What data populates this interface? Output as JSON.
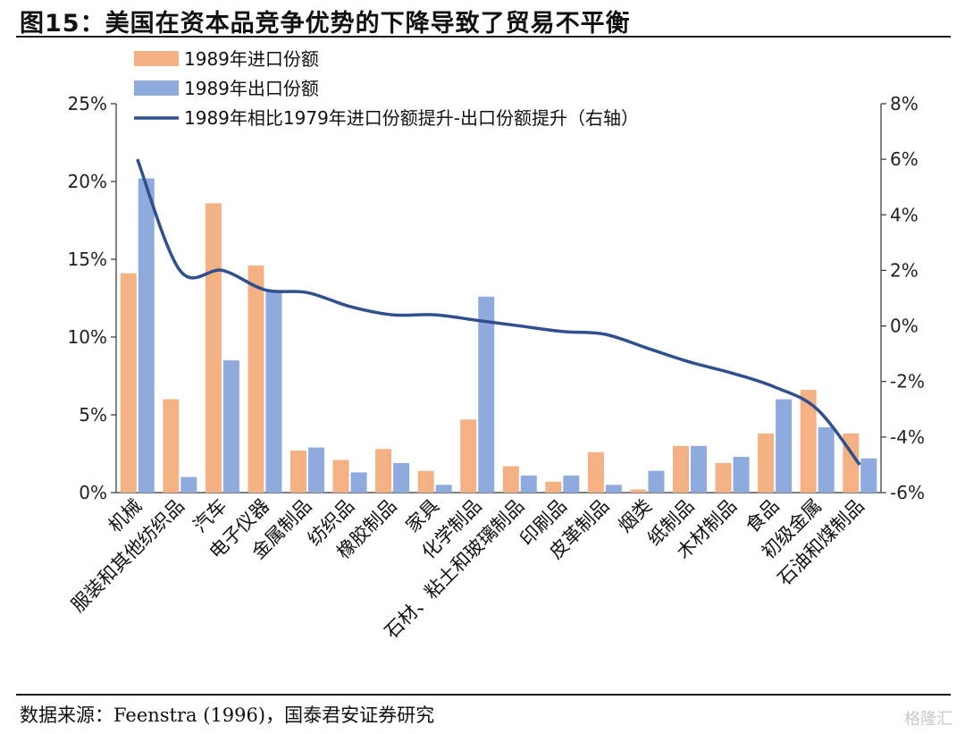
{
  "figure": {
    "title": "图15：美国在资本品竞争优势的下降导致了贸易不平衡",
    "source": "数据来源：Feenstra (1996)，国泰君安证券研究",
    "watermark": "格隆汇"
  },
  "chart_data": {
    "type": "bar",
    "categories": [
      "机械",
      "服装和其他纺织品",
      "汽车",
      "电子仪器",
      "金属制品",
      "纺织品",
      "橡胶制品",
      "家具",
      "化学制品",
      "石材、粘土和玻璃制品",
      "印刷品",
      "皮革制品",
      "烟类",
      "纸制品",
      "木材制品",
      "食品",
      "初级金属",
      "石油和煤制品"
    ],
    "series": [
      {
        "name": "1989年进口份额",
        "type": "bar",
        "axis": "left",
        "color": "#F4B183",
        "values": [
          14.1,
          6.0,
          18.6,
          14.6,
          2.7,
          2.1,
          2.8,
          1.4,
          4.7,
          1.7,
          0.7,
          2.6,
          0.2,
          3.0,
          1.9,
          3.8,
          6.6,
          3.8
        ]
      },
      {
        "name": "1989年出口份额",
        "type": "bar",
        "axis": "left",
        "color": "#8FAADC",
        "values": [
          20.2,
          1.0,
          8.5,
          13.0,
          2.9,
          1.3,
          1.9,
          0.5,
          12.6,
          1.1,
          1.1,
          0.5,
          1.4,
          3.0,
          2.3,
          6.0,
          4.2,
          2.2
        ]
      },
      {
        "name": "1989年相比1979年进口份额提升-出口份额提升（右轴）",
        "type": "line",
        "axis": "right",
        "color": "#2F4F8F",
        "values": [
          6.0,
          2.0,
          2.0,
          1.3,
          1.2,
          0.7,
          0.4,
          0.4,
          0.2,
          0.0,
          -0.2,
          -0.3,
          -0.8,
          -1.3,
          -1.7,
          -2.2,
          -3.0,
          -5.0
        ]
      }
    ],
    "left_axis": {
      "ylim": [
        0,
        25
      ],
      "ticks": [
        "0%",
        "5%",
        "10%",
        "15%",
        "20%",
        "25%"
      ],
      "tick_values": [
        0,
        5,
        10,
        15,
        20,
        25
      ]
    },
    "right_axis": {
      "ylim": [
        -6,
        8
      ],
      "ticks": [
        "-6%",
        "-4%",
        "-2%",
        "0%",
        "2%",
        "4%",
        "6%",
        "8%"
      ],
      "tick_values": [
        -6,
        -4,
        -2,
        0,
        2,
        4,
        6,
        8
      ]
    },
    "legend_position": "top-left",
    "grid": false
  }
}
